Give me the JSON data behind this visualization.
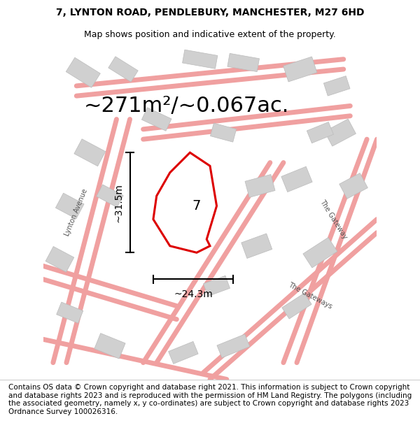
{
  "title_line1": "7, LYNTON ROAD, PENDLEBURY, MANCHESTER, M27 6HD",
  "title_line2": "Map shows position and indicative extent of the property.",
  "area_text": "~271m²/~0.067ac.",
  "width_label": "~24.3m",
  "height_label": "~31.5m",
  "property_number": "7",
  "footer_text": "Contains OS data © Crown copyright and database right 2021. This information is subject to Crown copyright and database rights 2023 and is reproduced with the permission of HM Land Registry. The polygons (including the associated geometry, namely x, y co-ordinates) are subject to Crown copyright and database rights 2023 Ordnance Survey 100026316.",
  "bg_color": "#ffffff",
  "map_bg": "#f5f5f5",
  "road_color": "#f0a0a0",
  "building_color": "#d0d0d0",
  "building_edge": "#bbbbbb",
  "property_color": "#dd0000",
  "property_fill": "#ffffff",
  "title_fontsize": 10,
  "subtitle_fontsize": 9,
  "area_fontsize": 22,
  "label_fontsize": 10,
  "footer_fontsize": 7.5,
  "road_label_color": "#555555",
  "road_label_fontsize": 7
}
